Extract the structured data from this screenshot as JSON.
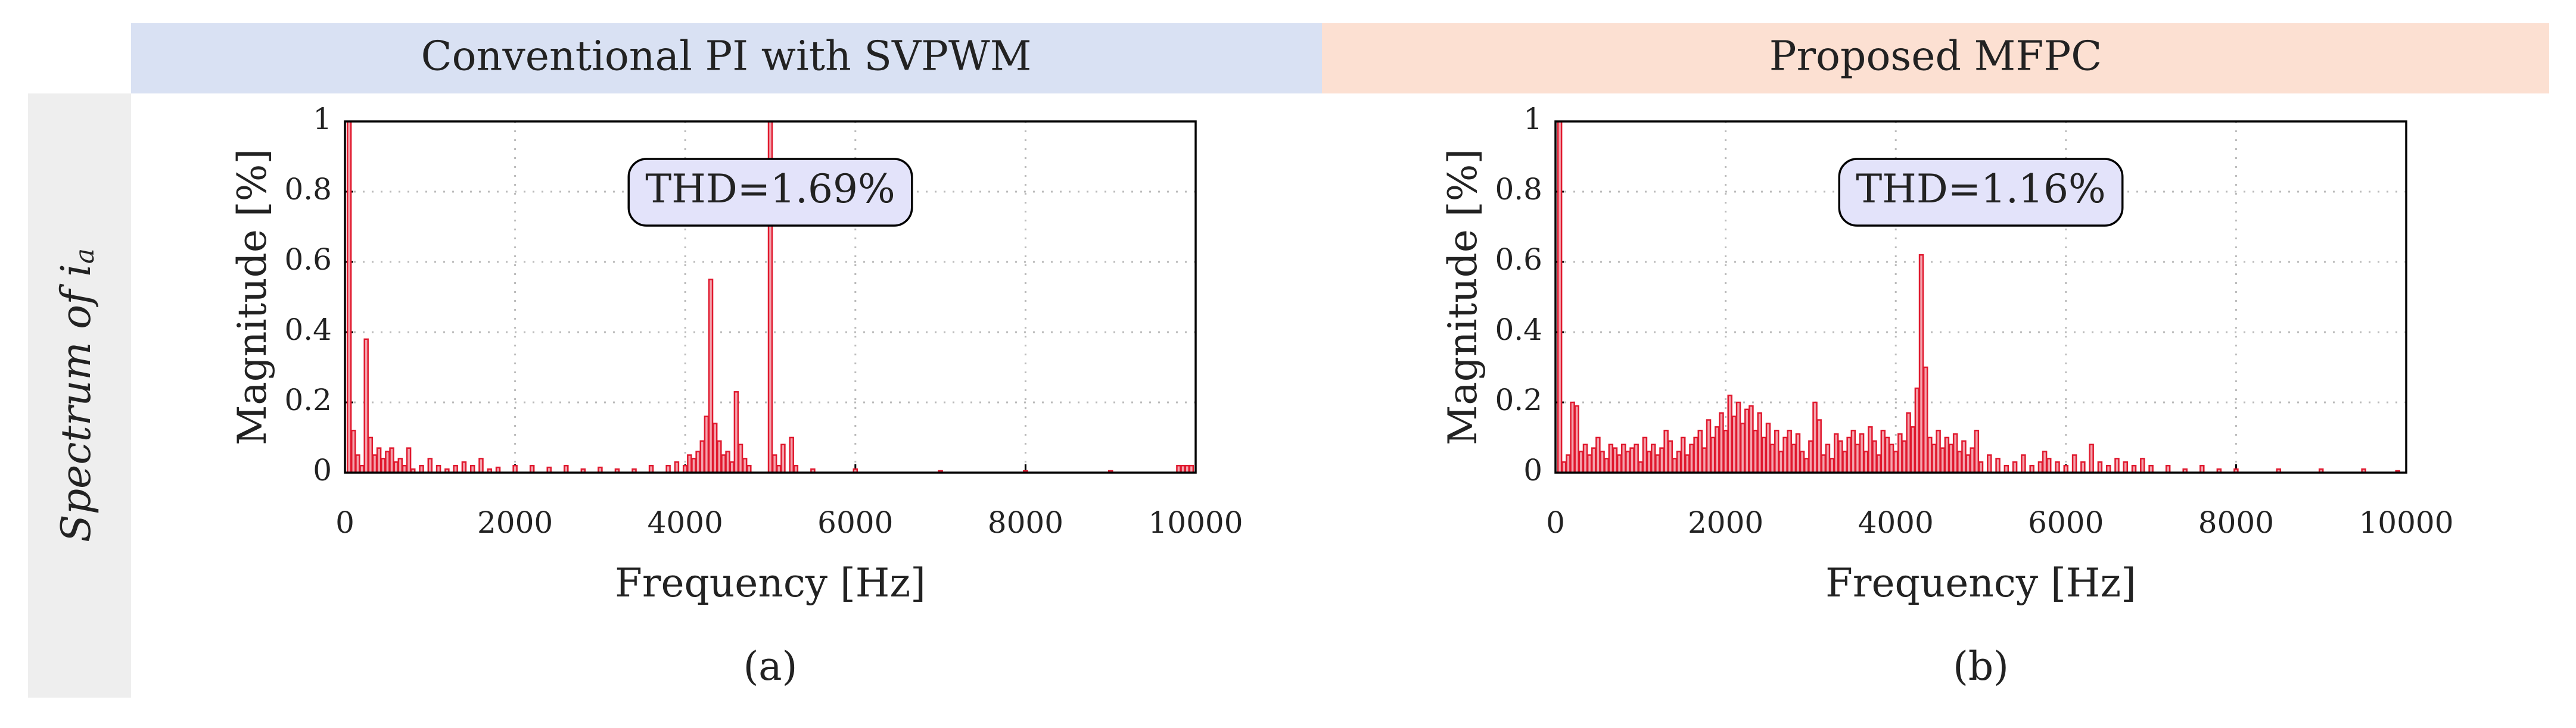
{
  "row_label": {
    "text": "Spectrum of i",
    "subscript": "a"
  },
  "chart_data": [
    {
      "type": "bar",
      "header": "Conventional PI with SVPWM",
      "panel_label": "(a)",
      "xlabel": "Frequency [Hz]",
      "ylabel": "Magnitude [%]",
      "annotation": "THD=1.69%",
      "color": "#f4a3ad",
      "edge_color": "#e0192e",
      "grid": true,
      "xlim": [
        0,
        10000
      ],
      "xticks": [
        0,
        2000,
        4000,
        6000,
        8000,
        10000
      ],
      "ylim": [
        0,
        1
      ],
      "yticks": [
        0,
        0.2,
        0.4,
        0.6,
        0.8,
        1
      ],
      "x": [
        50,
        100,
        150,
        200,
        250,
        300,
        350,
        400,
        450,
        500,
        550,
        600,
        650,
        700,
        750,
        800,
        900,
        1000,
        1100,
        1200,
        1300,
        1400,
        1500,
        1600,
        1700,
        1800,
        2000,
        2200,
        2400,
        2600,
        2800,
        3000,
        3200,
        3400,
        3600,
        3800,
        3900,
        4000,
        4050,
        4100,
        4150,
        4200,
        4250,
        4300,
        4350,
        4400,
        4450,
        4500,
        4550,
        4600,
        4650,
        4700,
        4750,
        5000,
        5050,
        5100,
        5150,
        5250,
        5300,
        5500,
        6000,
        7000,
        8000,
        9000,
        9800,
        9850,
        9900,
        9950
      ],
      "values": [
        1,
        0.12,
        0.05,
        0.02,
        0.38,
        0.1,
        0.05,
        0.07,
        0.04,
        0.06,
        0.07,
        0.03,
        0.04,
        0.02,
        0.07,
        0.01,
        0.02,
        0.04,
        0.02,
        0.01,
        0.02,
        0.03,
        0.02,
        0.04,
        0.01,
        0.015,
        0.02,
        0.02,
        0.015,
        0.02,
        0.01,
        0.015,
        0.01,
        0.01,
        0.02,
        0.02,
        0.03,
        0.02,
        0.05,
        0.04,
        0.06,
        0.09,
        0.16,
        0.55,
        0.14,
        0.09,
        0.05,
        0.06,
        0.03,
        0.23,
        0.08,
        0.04,
        0.02,
        1,
        0.05,
        0.02,
        0.08,
        0.1,
        0.02,
        0.01,
        0.01,
        0.005,
        0.005,
        0.005,
        0.02,
        0.02,
        0.02,
        0.02
      ]
    },
    {
      "type": "bar",
      "header": "Proposed MFPC",
      "panel_label": "(b)",
      "xlabel": "Frequency [Hz]",
      "ylabel": "Magnitude [%]",
      "annotation": "THD=1.16%",
      "color": "#f4a3ad",
      "edge_color": "#e0192e",
      "grid": true,
      "xlim": [
        0,
        10000
      ],
      "xticks": [
        0,
        2000,
        4000,
        6000,
        8000,
        10000
      ],
      "ylim": [
        0,
        1
      ],
      "yticks": [
        0,
        0.2,
        0.4,
        0.6,
        0.8,
        1
      ],
      "x": [
        50,
        100,
        150,
        200,
        250,
        300,
        350,
        400,
        450,
        500,
        550,
        600,
        650,
        700,
        750,
        800,
        850,
        900,
        950,
        1000,
        1050,
        1100,
        1150,
        1200,
        1250,
        1300,
        1350,
        1400,
        1450,
        1500,
        1550,
        1600,
        1650,
        1700,
        1750,
        1800,
        1850,
        1900,
        1950,
        2000,
        2050,
        2100,
        2150,
        2200,
        2250,
        2300,
        2350,
        2400,
        2450,
        2500,
        2550,
        2600,
        2650,
        2700,
        2750,
        2800,
        2850,
        2900,
        2950,
        3000,
        3050,
        3100,
        3150,
        3200,
        3250,
        3300,
        3350,
        3400,
        3450,
        3500,
        3550,
        3600,
        3650,
        3700,
        3750,
        3800,
        3850,
        3900,
        3950,
        4000,
        4050,
        4100,
        4150,
        4200,
        4250,
        4300,
        4350,
        4400,
        4450,
        4500,
        4550,
        4600,
        4650,
        4700,
        4750,
        4800,
        4850,
        4900,
        4950,
        5000,
        5100,
        5200,
        5300,
        5400,
        5500,
        5600,
        5700,
        5750,
        5800,
        5900,
        6000,
        6100,
        6200,
        6300,
        6400,
        6500,
        6600,
        6700,
        6800,
        6900,
        7000,
        7200,
        7400,
        7600,
        7800,
        8000,
        8500,
        9000,
        9500,
        9900
      ],
      "values": [
        1,
        0.03,
        0.05,
        0.2,
        0.19,
        0.06,
        0.08,
        0.05,
        0.07,
        0.1,
        0.06,
        0.04,
        0.08,
        0.07,
        0.05,
        0.08,
        0.06,
        0.07,
        0.08,
        0.03,
        0.1,
        0.06,
        0.08,
        0.05,
        0.07,
        0.12,
        0.09,
        0.04,
        0.06,
        0.1,
        0.05,
        0.08,
        0.1,
        0.12,
        0.07,
        0.15,
        0.1,
        0.13,
        0.17,
        0.12,
        0.22,
        0.16,
        0.2,
        0.14,
        0.18,
        0.19,
        0.12,
        0.17,
        0.1,
        0.14,
        0.08,
        0.12,
        0.06,
        0.1,
        0.12,
        0.08,
        0.11,
        0.06,
        0.04,
        0.09,
        0.2,
        0.15,
        0.05,
        0.08,
        0.04,
        0.11,
        0.09,
        0.06,
        0.1,
        0.12,
        0.08,
        0.11,
        0.06,
        0.13,
        0.09,
        0.05,
        0.12,
        0.1,
        0.08,
        0.06,
        0.11,
        0.09,
        0.17,
        0.13,
        0.24,
        0.62,
        0.3,
        0.1,
        0.08,
        0.12,
        0.07,
        0.1,
        0.08,
        0.11,
        0.06,
        0.09,
        0.05,
        0.07,
        0.12,
        0.03,
        0.05,
        0.04,
        0.02,
        0.03,
        0.05,
        0.02,
        0.03,
        0.06,
        0.04,
        0.03,
        0.02,
        0.05,
        0.03,
        0.08,
        0.03,
        0.02,
        0.04,
        0.03,
        0.02,
        0.04,
        0.02,
        0.02,
        0.01,
        0.02,
        0.01,
        0.01,
        0.01,
        0.01,
        0.01,
        0.005
      ]
    }
  ]
}
